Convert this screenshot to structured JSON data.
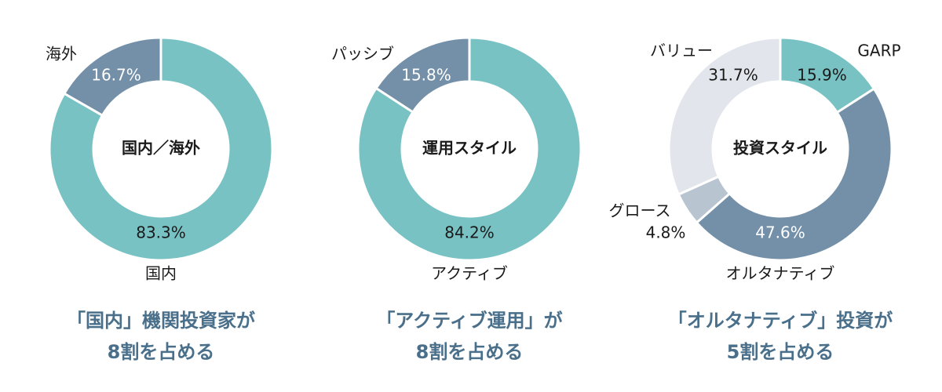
{
  "chart_data": [
    {
      "type": "donut",
      "center_title": "国内／海外",
      "categories": [
        "国内",
        "海外"
      ],
      "values": [
        83.3,
        16.7
      ],
      "value_labels": [
        "83.3%",
        "16.7%"
      ],
      "colors": [
        "#78c2c4",
        "#7390a8"
      ],
      "caption": [
        "「国内」機関投資家が",
        "8割を占める"
      ]
    },
    {
      "type": "donut",
      "center_title": "運用スタイル",
      "categories": [
        "アクティブ",
        "パッシブ"
      ],
      "values": [
        84.2,
        15.8
      ],
      "value_labels": [
        "84.2%",
        "15.8%"
      ],
      "colors": [
        "#78c2c4",
        "#7390a8"
      ],
      "caption": [
        "「アクティブ運用」が",
        "8割を占める"
      ]
    },
    {
      "type": "donut",
      "center_title": "投資スタイル",
      "categories": [
        "GARP",
        "オルタナティブ",
        "グロース",
        "バリュー"
      ],
      "values": [
        15.9,
        47.6,
        4.8,
        31.7
      ],
      "value_labels": [
        "15.9%",
        "47.6%",
        "4.8%",
        "31.7%"
      ],
      "colors": [
        "#78c2c4",
        "#7390a8",
        "#b8c4d0",
        "#e2e6ec"
      ],
      "caption": [
        "「オルタナティブ」投資が",
        "5割を占める"
      ]
    }
  ]
}
